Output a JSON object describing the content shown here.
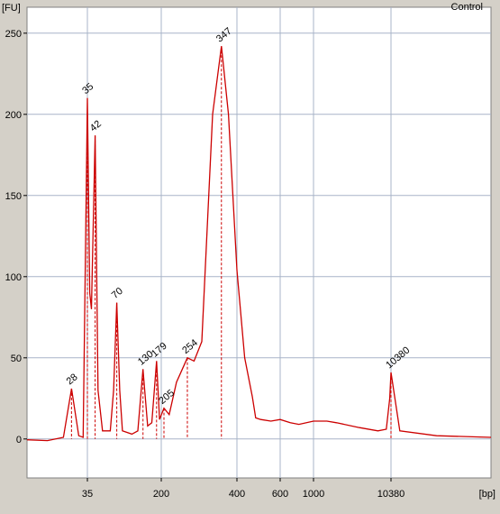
{
  "chart_data": {
    "type": "line",
    "title": "Control",
    "y_label": "[FU]",
    "x_label": "[bp]",
    "x": [
      15,
      20,
      25,
      28,
      31,
      33,
      35,
      37,
      38.5,
      42,
      45,
      50,
      60,
      65,
      70,
      75,
      80,
      100,
      115,
      130,
      145,
      160,
      179,
      192,
      205,
      215,
      230,
      254,
      270,
      290,
      320,
      347,
      370,
      400,
      430,
      462,
      477,
      500,
      550,
      600,
      700,
      800,
      1000,
      1500,
      2000,
      4000,
      7000,
      9000,
      10000,
      10380,
      11000,
      14000,
      20000
    ],
    "series": [
      {
        "name": "Control",
        "color": "#cc0000",
        "values": [
          -0.5,
          -1,
          1,
          31,
          2,
          1,
          210,
          90,
          80,
          187,
          30,
          5,
          5,
          30,
          84,
          30,
          5,
          3,
          5,
          43,
          8,
          10,
          48,
          12,
          19,
          15,
          35,
          50,
          48,
          60,
          200,
          242,
          200,
          104,
          50,
          26,
          13,
          12,
          11,
          12,
          10,
          9,
          11,
          11,
          10,
          7,
          5,
          6,
          25,
          41,
          5,
          2,
          1
        ]
      }
    ],
    "peaks": [
      {
        "bp": 28,
        "fu": 31,
        "color": "#000000"
      },
      {
        "bp": 35,
        "fu": 210,
        "color": "#2e8b57"
      },
      {
        "bp": 42,
        "fu": 187,
        "color": "#000000"
      },
      {
        "bp": 70,
        "fu": 84,
        "color": "#000000"
      },
      {
        "bp": 130,
        "fu": 43,
        "color": "#000000"
      },
      {
        "bp": 179,
        "fu": 48,
        "color": "#000000"
      },
      {
        "bp": 205,
        "fu": 19,
        "color": "#000000"
      },
      {
        "bp": 254,
        "fu": 50,
        "color": "#000000"
      },
      {
        "bp": 347,
        "fu": 242,
        "color": "#000000"
      },
      {
        "bp": 10380,
        "fu": 41,
        "color": "#8a2be2"
      }
    ],
    "xlim": [
      15,
      20000
    ],
    "xticks": [
      35,
      200,
      400,
      600,
      1000,
      10380
    ],
    "ylim": [
      -24,
      266
    ],
    "yticks": [
      0,
      50,
      100,
      150,
      200,
      250
    ],
    "grid": true
  }
}
